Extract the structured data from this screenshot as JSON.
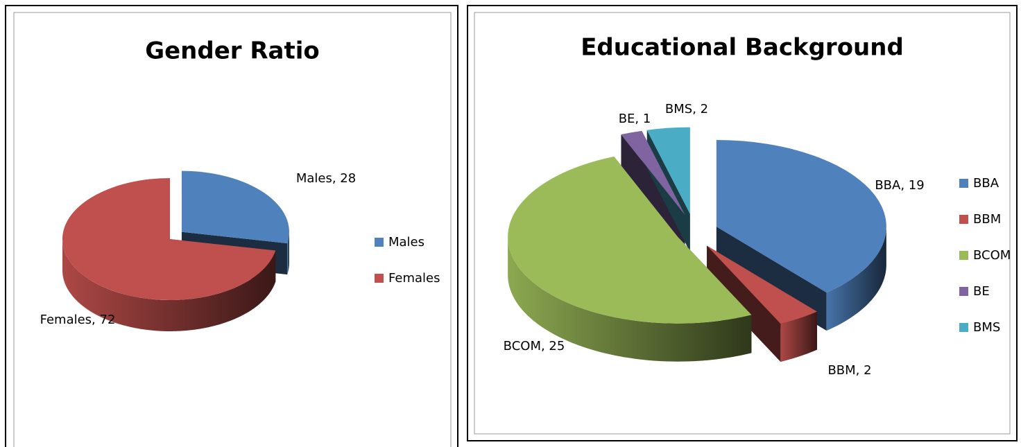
{
  "chart_data": [
    {
      "type": "pie",
      "title": "Gender Ratio",
      "categories": [
        "Males",
        "Females"
      ],
      "values": [
        28,
        72
      ],
      "value_labels": [
        "Males, 28",
        "Females, 72"
      ],
      "colors": [
        "#4f81bd",
        "#c0504d"
      ],
      "legend": "right"
    },
    {
      "type": "pie",
      "title": "Educational Background",
      "categories": [
        "BBA",
        "BBM",
        "BCOM",
        "BE",
        "BMS"
      ],
      "values": [
        19,
        2,
        25,
        1,
        2
      ],
      "value_labels": [
        "BBA, 19",
        "BBM, 2",
        "BCOM, 25",
        "BE, 1",
        "BMS, 2"
      ],
      "colors": [
        "#4f81bd",
        "#c0504d",
        "#9bbb59",
        "#8064a2",
        "#4bacc6"
      ],
      "legend": "right"
    }
  ]
}
